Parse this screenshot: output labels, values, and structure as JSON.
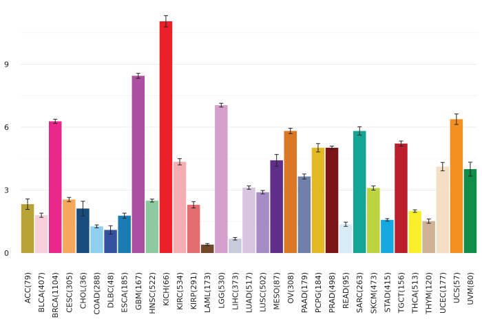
{
  "chart_data": {
    "type": "bar",
    "title": "",
    "xlabel": "",
    "ylabel": "",
    "ylim": [
      0,
      11.5
    ],
    "yticks": [
      0,
      3,
      6,
      9
    ],
    "grid": true,
    "legend": "none",
    "categories": [
      "ACC(79)",
      "BLCA(407)",
      "BRCA(1104)",
      "CESC(305)",
      "CHOL(36)",
      "COAD(288)",
      "DLBC(48)",
      "ESCA(185)",
      "GBM(167)",
      "HNSC(522)",
      "KICH(66)",
      "KIRC(534)",
      "KIRP(291)",
      "LAML(173)",
      "LGG(530)",
      "LIHC(373)",
      "LUAD(517)",
      "LUSC(502)",
      "MESO(87)",
      "OV(308)",
      "PAAD(179)",
      "PCPG(184)",
      "PRAD(498)",
      "READ(95)",
      "SARC(263)",
      "SKCM(473)",
      "STAD(415)",
      "TGCT(156)",
      "THCA(513)",
      "THYM(120)",
      "UCEC(177)",
      "UCS(57)",
      "UVM(80)"
    ],
    "values": [
      2.33,
      1.8,
      6.28,
      2.55,
      2.12,
      1.27,
      1.1,
      1.78,
      8.45,
      2.5,
      11.05,
      4.35,
      2.3,
      0.4,
      7.05,
      0.68,
      3.12,
      2.9,
      4.42,
      5.82,
      3.65,
      5.02,
      5.02,
      1.37,
      5.82,
      3.1,
      1.58,
      5.22,
      2.0,
      1.52,
      4.12,
      6.38,
      4.0
    ],
    "errors": [
      0.25,
      0.1,
      0.1,
      0.1,
      0.35,
      0.07,
      0.2,
      0.12,
      0.12,
      0.07,
      0.27,
      0.15,
      0.15,
      0.05,
      0.09,
      0.06,
      0.08,
      0.08,
      0.28,
      0.13,
      0.12,
      0.2,
      0.08,
      0.1,
      0.2,
      0.1,
      0.06,
      0.12,
      0.06,
      0.1,
      0.2,
      0.25,
      0.33
    ],
    "colors": [
      "#b8a233",
      "#f8d0dc",
      "#e8278a",
      "#f5a85c",
      "#174c7c",
      "#8fd0ef",
      "#3552a0",
      "#1b7bb3",
      "#ab4fa0",
      "#8dcaa0",
      "#ea1f28",
      "#f4aeb3",
      "#e36c71",
      "#714829",
      "#d4a0cb",
      "#c7cbdc",
      "#d8c5e0",
      "#a68bc4",
      "#5e2e88",
      "#db7824",
      "#7180a8",
      "#e2b824",
      "#7b1416",
      "#d8ebf6",
      "#15a595",
      "#bbd43f",
      "#16a8e0",
      "#bc1f2c",
      "#f8ee2a",
      "#cfb295",
      "#f5dfc4",
      "#f48f22",
      "#0f8d49"
    ]
  }
}
